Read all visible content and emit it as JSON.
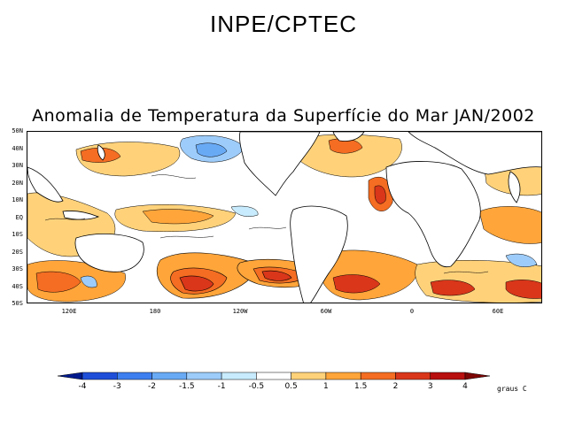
{
  "header": {
    "title": "INPE/CPTEC"
  },
  "map": {
    "title": "Anomalia de Temperatura da Superfície do Mar JAN/2002",
    "lat_labels": [
      "50N",
      "40N",
      "30N",
      "20N",
      "10N",
      "EQ",
      "10S",
      "20S",
      "30S",
      "40S",
      "50S"
    ],
    "lon_labels": [
      "120E",
      "180",
      "120W",
      "60W",
      "0",
      "60E"
    ],
    "variable": "sea surface temperature anomaly",
    "month": "JAN/2002"
  },
  "legend": {
    "breaks": [
      "-4",
      "-3",
      "-2",
      "-1.5",
      "-1",
      "-0.5",
      "0.5",
      "1",
      "1.5",
      "2",
      "3",
      "4"
    ],
    "colors": [
      "#001a8c",
      "#1f4fd9",
      "#3d7ff0",
      "#69aaf5",
      "#9dccfa",
      "#c8ecfd",
      "#ffffff",
      "#ffd27a",
      "#ffa53a",
      "#f46d22",
      "#d9361a",
      "#b80f0f",
      "#7d0505"
    ],
    "units": "graus C"
  }
}
